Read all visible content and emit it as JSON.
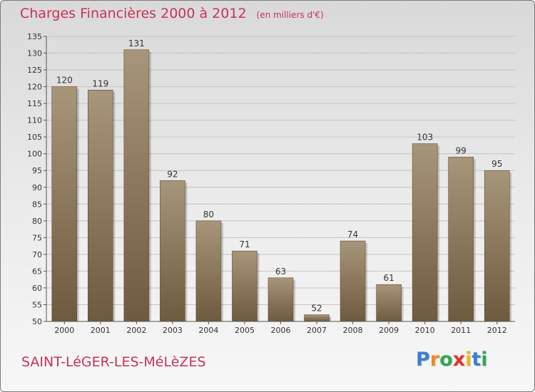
{
  "header": {
    "title": "Charges Financières 2000 à 2012",
    "unit": "(en milliers d'€)"
  },
  "footer": {
    "city": "SAINT-LéGER-LES-MéLèZES",
    "logo_letters": [
      "P",
      "r",
      "o",
      "x",
      "i",
      "t",
      "i"
    ],
    "logo_colors": [
      "#3a7fd5",
      "#f08a1c",
      "#2fa84f",
      "#e4322b",
      "#f0b41c",
      "#3a7fd5",
      "#2fa84f"
    ]
  },
  "colors": {
    "bar_top": "#a8967a",
    "bar_bottom": "#6e5a3e",
    "grid": "#c4c4c4",
    "axis": "#555555",
    "text": "#333333"
  },
  "chart_data": {
    "type": "bar",
    "categories": [
      "2000",
      "2001",
      "2002",
      "2003",
      "2004",
      "2005",
      "2006",
      "2007",
      "2008",
      "2009",
      "2010",
      "2011",
      "2012"
    ],
    "values": [
      120,
      119,
      131,
      92,
      80,
      71,
      63,
      52,
      74,
      61,
      103,
      99,
      95
    ],
    "ylim": [
      50,
      135
    ],
    "ytick_step": 5,
    "grid": true
  }
}
